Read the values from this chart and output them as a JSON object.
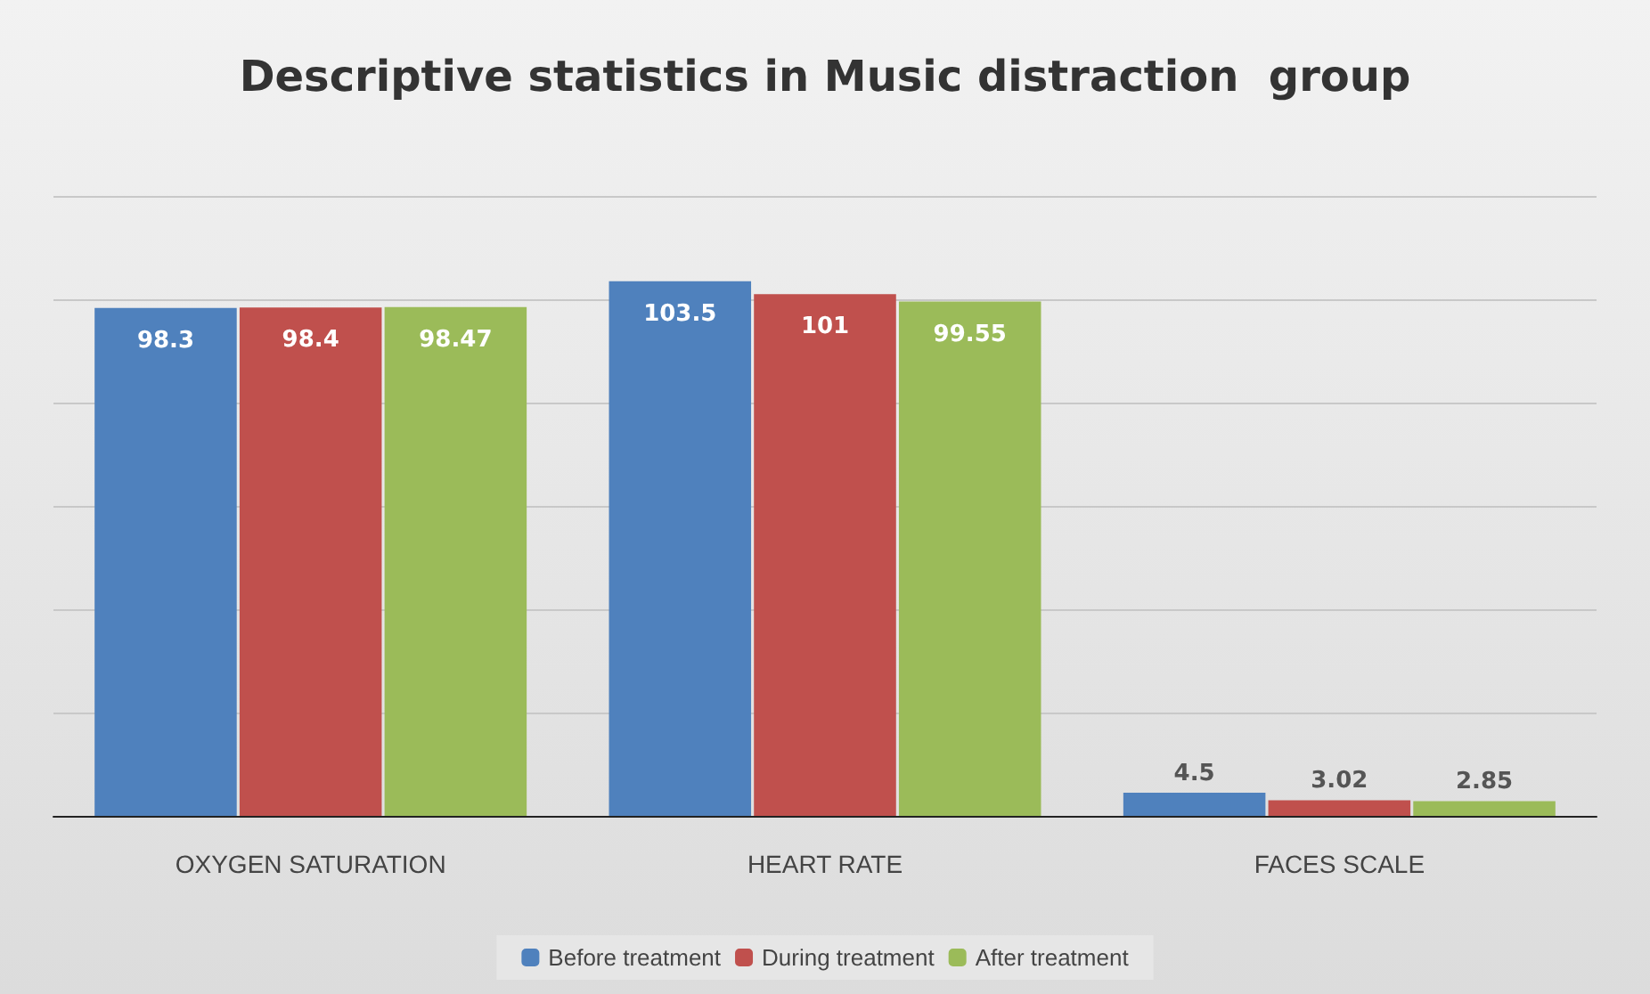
{
  "chart_data": {
    "type": "bar",
    "title": "Descriptive statistics in Music distraction  group",
    "categories": [
      "OXYGEN SATURATION",
      "HEART RATE",
      "FACES SCALE"
    ],
    "series": [
      {
        "name": "Before treatment",
        "color": "#4f81bd",
        "values": [
          98.3,
          103.5,
          4.5
        ]
      },
      {
        "name": "During treatment",
        "color": "#c0504d",
        "values": [
          98.4,
          101,
          3.02
        ]
      },
      {
        "name": "After treatment",
        "color": "#9bbb59",
        "values": [
          98.47,
          99.55,
          2.85
        ]
      }
    ],
    "ylim": [
      0,
      120
    ],
    "yticks": [
      {
        "value": 0,
        "label": null
      },
      {
        "value": 20,
        "label": null
      },
      {
        "value": 40,
        "label": null
      },
      {
        "value": 60,
        "label": null
      },
      {
        "value": 80,
        "label": null
      },
      {
        "value": 100,
        "label": null
      },
      {
        "value": 120,
        "label": null
      }
    ],
    "tick_labels": "x",
    "grid": "y",
    "legend": "bottom",
    "data_labels": true
  }
}
